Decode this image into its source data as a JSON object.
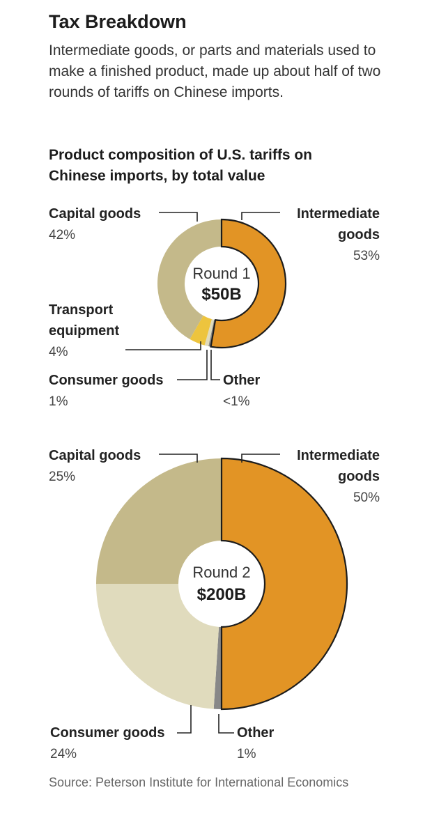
{
  "header": {
    "title": "Tax Breakdown",
    "subtitle": "Intermediate goods, or parts and materials used to make a finished product, made up about half of two rounds of tariffs on Chinese imports."
  },
  "colors": {
    "intermediate": "#E29425",
    "capital": "#C4B98A",
    "consumer": "#E0DBBD",
    "transport": "#EDC43E",
    "other": "#888888",
    "outline": "#1c1c1c"
  },
  "chart_data": {
    "type": "pie",
    "title": "Product composition of U.S. tariffs on Chinese imports, by total value",
    "charts": [
      {
        "round_label": "Round 1",
        "total_label": "$50B",
        "slices": [
          {
            "name": "Intermediate goods",
            "name_lines": [
              "Intermediate",
              "goods"
            ],
            "value": 53,
            "value_label": "53%",
            "color_key": "intermediate"
          },
          {
            "name": "Other",
            "name_lines": [
              "Other"
            ],
            "value": 0.6,
            "value_label": "<1%",
            "color_key": "other"
          },
          {
            "name": "Consumer goods",
            "name_lines": [
              "Consumer goods"
            ],
            "value": 1,
            "value_label": "1%",
            "color_key": "consumer"
          },
          {
            "name": "Transport equipment",
            "name_lines": [
              "Transport",
              "equipment"
            ],
            "value": 4,
            "value_label": "4%",
            "color_key": "transport"
          },
          {
            "name": "Capital goods",
            "name_lines": [
              "Capital goods"
            ],
            "value": 42,
            "value_label": "42%",
            "color_key": "capital"
          }
        ]
      },
      {
        "round_label": "Round 2",
        "total_label": "$200B",
        "slices": [
          {
            "name": "Intermediate goods",
            "name_lines": [
              "Intermediate",
              "goods"
            ],
            "value": 50,
            "value_label": "50%",
            "color_key": "intermediate"
          },
          {
            "name": "Other",
            "name_lines": [
              "Other"
            ],
            "value": 1,
            "value_label": "1%",
            "color_key": "other"
          },
          {
            "name": "Consumer goods",
            "name_lines": [
              "Consumer goods"
            ],
            "value": 24,
            "value_label": "24%",
            "color_key": "consumer"
          },
          {
            "name": "Capital goods",
            "name_lines": [
              "Capital goods"
            ],
            "value": 25,
            "value_label": "25%",
            "color_key": "capital"
          }
        ]
      }
    ]
  },
  "footer": {
    "source": "Source: Peterson Institute for International Economics"
  }
}
